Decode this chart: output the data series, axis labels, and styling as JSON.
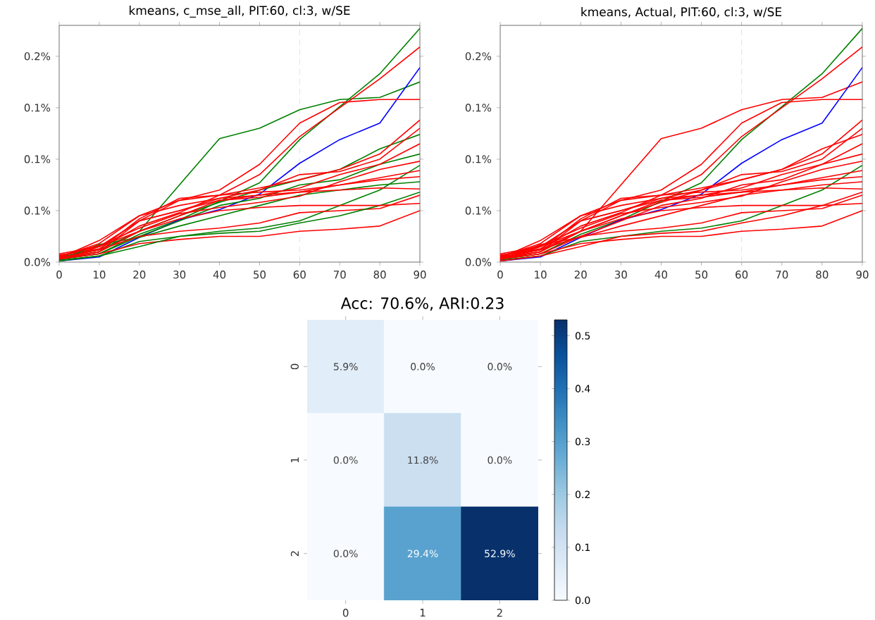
{
  "chart_data": [
    {
      "type": "line",
      "title": "kmeans, c_mse_all, PIT:60, cl:3, w/SE",
      "x": [
        0,
        10,
        20,
        30,
        40,
        50,
        60,
        70,
        80,
        90
      ],
      "xlim": [
        0,
        90
      ],
      "ylim": [
        0,
        0.23
      ],
      "xticks": [
        0,
        10,
        20,
        30,
        40,
        50,
        60,
        70,
        80,
        90
      ],
      "yticks": [
        {
          "value": 0,
          "label": "0.0%"
        },
        {
          "value": 0.05,
          "label": "0.1%"
        },
        {
          "value": 0.1,
          "label": "0.1%"
        },
        {
          "value": 0.15,
          "label": "0.1%"
        },
        {
          "value": 0.2,
          "label": "0.2%"
        }
      ],
      "ref_lines": [
        {
          "axis": "x",
          "value": 60,
          "color": "#d9d9d9",
          "line_style": "dashed"
        }
      ],
      "series": [
        {
          "color": "#008000",
          "values": [
            0.003,
            0.008,
            0.027,
            0.041,
            0.059,
            0.077,
            0.119,
            0.151,
            0.183,
            0.227
          ]
        },
        {
          "color": "#008000",
          "values": [
            0.005,
            0.012,
            0.03,
            0.075,
            0.12,
            0.13,
            0.148,
            0.158,
            0.16,
            0.175
          ]
        },
        {
          "color": "#0000ff",
          "values": [
            0.001,
            0.005,
            0.024,
            0.041,
            0.051,
            0.066,
            0.096,
            0.119,
            0.135,
            0.189
          ]
        },
        {
          "color": "#ff0000",
          "values": [
            0.006,
            0.013,
            0.035,
            0.048,
            0.065,
            0.085,
            0.122,
            0.15,
            0.178,
            0.209
          ]
        },
        {
          "color": "#ff0000",
          "values": [
            0.008,
            0.015,
            0.04,
            0.06,
            0.07,
            0.095,
            0.135,
            0.155,
            0.158,
            0.158
          ]
        },
        {
          "color": "#008000",
          "values": [
            0.004,
            0.01,
            0.03,
            0.045,
            0.058,
            0.07,
            0.08,
            0.09,
            0.11,
            0.124
          ]
        },
        {
          "color": "#ff0000",
          "values": [
            0.007,
            0.012,
            0.042,
            0.062,
            0.065,
            0.072,
            0.08,
            0.09,
            0.105,
            0.138
          ]
        },
        {
          "color": "#ff0000",
          "values": [
            0.002,
            0.015,
            0.04,
            0.05,
            0.062,
            0.07,
            0.085,
            0.088,
            0.1,
            0.13
          ]
        },
        {
          "color": "#008000",
          "values": [
            0.003,
            0.008,
            0.025,
            0.04,
            0.055,
            0.062,
            0.075,
            0.08,
            0.095,
            0.105
          ]
        },
        {
          "color": "#008000",
          "values": [
            0.002,
            0.006,
            0.02,
            0.025,
            0.03,
            0.033,
            0.04,
            0.055,
            0.07,
            0.094
          ]
        },
        {
          "color": "#ff0000",
          "values": [
            0.005,
            0.018,
            0.045,
            0.06,
            0.065,
            0.068,
            0.07,
            0.075,
            0.082,
            0.089
          ]
        },
        {
          "color": "#ff0000",
          "values": [
            0.004,
            0.01,
            0.04,
            0.05,
            0.06,
            0.063,
            0.068,
            0.075,
            0.08,
            0.083
          ]
        },
        {
          "color": "#008000",
          "values": [
            0.002,
            0.017,
            0.024,
            0.035,
            0.045,
            0.055,
            0.065,
            0.07,
            0.075,
            0.078
          ]
        },
        {
          "color": "#ff0000",
          "values": [
            0.004,
            0.012,
            0.025,
            0.03,
            0.033,
            0.038,
            0.048,
            0.05,
            0.052,
            0.065
          ]
        },
        {
          "color": "#ff0000",
          "values": [
            0.003,
            0.008,
            0.018,
            0.022,
            0.025,
            0.025,
            0.03,
            0.032,
            0.035,
            0.05
          ]
        },
        {
          "color": "#008000",
          "values": [
            0.001,
            0.006,
            0.015,
            0.025,
            0.028,
            0.03,
            0.038,
            0.045,
            0.055,
            0.068
          ]
        },
        {
          "color": "#ff0000",
          "values": [
            0.006,
            0.015,
            0.03,
            0.042,
            0.05,
            0.053,
            0.055,
            0.055,
            0.055,
            0.057
          ]
        },
        {
          "color": "#ff0000",
          "values": [
            0.003,
            0.01,
            0.03,
            0.045,
            0.06,
            0.065,
            0.072,
            0.085,
            0.095,
            0.115
          ]
        },
        {
          "color": "#ff0000",
          "values": [
            0.006,
            0.016,
            0.033,
            0.047,
            0.053,
            0.058,
            0.064,
            0.078,
            0.09,
            0.098
          ]
        },
        {
          "color": "#ff0000",
          "values": [
            0.004,
            0.021,
            0.045,
            0.055,
            0.062,
            0.065,
            0.068,
            0.07,
            0.072,
            0.071
          ]
        }
      ]
    },
    {
      "type": "line",
      "title": "kmeans, Actual, PIT:60, cl:3, w/SE",
      "x": [
        0,
        10,
        20,
        30,
        40,
        50,
        60,
        70,
        80,
        90
      ],
      "xlim": [
        0,
        90
      ],
      "ylim": [
        0,
        0.23
      ],
      "xticks": [
        0,
        10,
        20,
        30,
        40,
        50,
        60,
        70,
        80,
        90
      ],
      "yticks": [
        {
          "value": 0,
          "label": "0.0%"
        },
        {
          "value": 0.05,
          "label": "0.1%"
        },
        {
          "value": 0.1,
          "label": "0.1%"
        },
        {
          "value": 0.15,
          "label": "0.1%"
        },
        {
          "value": 0.2,
          "label": "0.2%"
        }
      ],
      "ref_lines": [
        {
          "axis": "x",
          "value": 60,
          "color": "#d9d9d9",
          "line_style": "dashed"
        }
      ],
      "series": [
        {
          "color": "#008000",
          "values": [
            0.003,
            0.008,
            0.027,
            0.041,
            0.059,
            0.077,
            0.119,
            0.151,
            0.183,
            0.227
          ]
        },
        {
          "color": "#ff0000",
          "values": [
            0.005,
            0.012,
            0.03,
            0.075,
            0.12,
            0.13,
            0.148,
            0.158,
            0.16,
            0.175
          ]
        },
        {
          "color": "#0000ff",
          "values": [
            0.001,
            0.005,
            0.024,
            0.041,
            0.051,
            0.066,
            0.096,
            0.119,
            0.135,
            0.189
          ]
        },
        {
          "color": "#ff0000",
          "values": [
            0.006,
            0.013,
            0.035,
            0.048,
            0.065,
            0.085,
            0.122,
            0.15,
            0.178,
            0.209
          ]
        },
        {
          "color": "#ff0000",
          "values": [
            0.008,
            0.015,
            0.04,
            0.06,
            0.07,
            0.095,
            0.135,
            0.155,
            0.158,
            0.158
          ]
        },
        {
          "color": "#ff0000",
          "values": [
            0.004,
            0.01,
            0.03,
            0.045,
            0.058,
            0.07,
            0.08,
            0.09,
            0.11,
            0.124
          ]
        },
        {
          "color": "#ff0000",
          "values": [
            0.007,
            0.012,
            0.042,
            0.062,
            0.065,
            0.072,
            0.08,
            0.09,
            0.105,
            0.138
          ]
        },
        {
          "color": "#ff0000",
          "values": [
            0.002,
            0.015,
            0.04,
            0.05,
            0.062,
            0.07,
            0.085,
            0.088,
            0.1,
            0.13
          ]
        },
        {
          "color": "#ff0000",
          "values": [
            0.003,
            0.008,
            0.025,
            0.04,
            0.055,
            0.062,
            0.075,
            0.08,
            0.095,
            0.105
          ]
        },
        {
          "color": "#008000",
          "values": [
            0.002,
            0.006,
            0.02,
            0.025,
            0.03,
            0.033,
            0.04,
            0.055,
            0.07,
            0.094
          ]
        },
        {
          "color": "#ff0000",
          "values": [
            0.005,
            0.018,
            0.045,
            0.06,
            0.065,
            0.068,
            0.07,
            0.075,
            0.082,
            0.089
          ]
        },
        {
          "color": "#ff0000",
          "values": [
            0.004,
            0.01,
            0.04,
            0.05,
            0.06,
            0.063,
            0.068,
            0.075,
            0.08,
            0.083
          ]
        },
        {
          "color": "#ff0000",
          "values": [
            0.002,
            0.017,
            0.024,
            0.035,
            0.045,
            0.055,
            0.065,
            0.07,
            0.075,
            0.078
          ]
        },
        {
          "color": "#ff0000",
          "values": [
            0.004,
            0.012,
            0.025,
            0.03,
            0.033,
            0.038,
            0.048,
            0.05,
            0.052,
            0.065
          ]
        },
        {
          "color": "#ff0000",
          "values": [
            0.003,
            0.008,
            0.018,
            0.022,
            0.025,
            0.025,
            0.03,
            0.032,
            0.035,
            0.05
          ]
        },
        {
          "color": "#ff0000",
          "values": [
            0.001,
            0.006,
            0.015,
            0.025,
            0.028,
            0.03,
            0.038,
            0.045,
            0.055,
            0.068
          ]
        },
        {
          "color": "#ff0000",
          "values": [
            0.006,
            0.015,
            0.03,
            0.042,
            0.05,
            0.053,
            0.055,
            0.055,
            0.055,
            0.057
          ]
        },
        {
          "color": "#ff0000",
          "values": [
            0.003,
            0.01,
            0.03,
            0.045,
            0.06,
            0.065,
            0.072,
            0.085,
            0.095,
            0.115
          ]
        },
        {
          "color": "#ff0000",
          "values": [
            0.006,
            0.016,
            0.033,
            0.047,
            0.053,
            0.058,
            0.064,
            0.078,
            0.09,
            0.098
          ]
        },
        {
          "color": "#ff0000",
          "values": [
            0.004,
            0.021,
            0.045,
            0.055,
            0.062,
            0.065,
            0.068,
            0.07,
            0.072,
            0.071
          ]
        }
      ]
    },
    {
      "type": "heatmap",
      "title": "Acc: 70.6%,    ARI:0.23",
      "categories": [
        "0",
        "1",
        "2"
      ],
      "y_categories": [
        "0",
        "1",
        "2"
      ],
      "cells": [
        [
          0.059,
          0.0,
          0.0
        ],
        [
          0.0,
          0.118,
          0.0
        ],
        [
          0.0,
          0.294,
          0.529
        ]
      ],
      "cell_labels": [
        [
          "5.9%",
          "0.0%",
          "0.0%"
        ],
        [
          "0.0%",
          "11.8%",
          "0.0%"
        ],
        [
          "0.0%",
          "29.4%",
          "52.9%"
        ]
      ],
      "clim": [
        0,
        0.53
      ],
      "cticks": [
        {
          "value": 0,
          "label": "0.0"
        },
        {
          "value": 0.1,
          "label": "0.1"
        },
        {
          "value": 0.2,
          "label": "0.2"
        },
        {
          "value": 0.3,
          "label": "0.3"
        },
        {
          "value": 0.4,
          "label": "0.4"
        },
        {
          "value": 0.5,
          "label": "0.5"
        }
      ]
    }
  ]
}
